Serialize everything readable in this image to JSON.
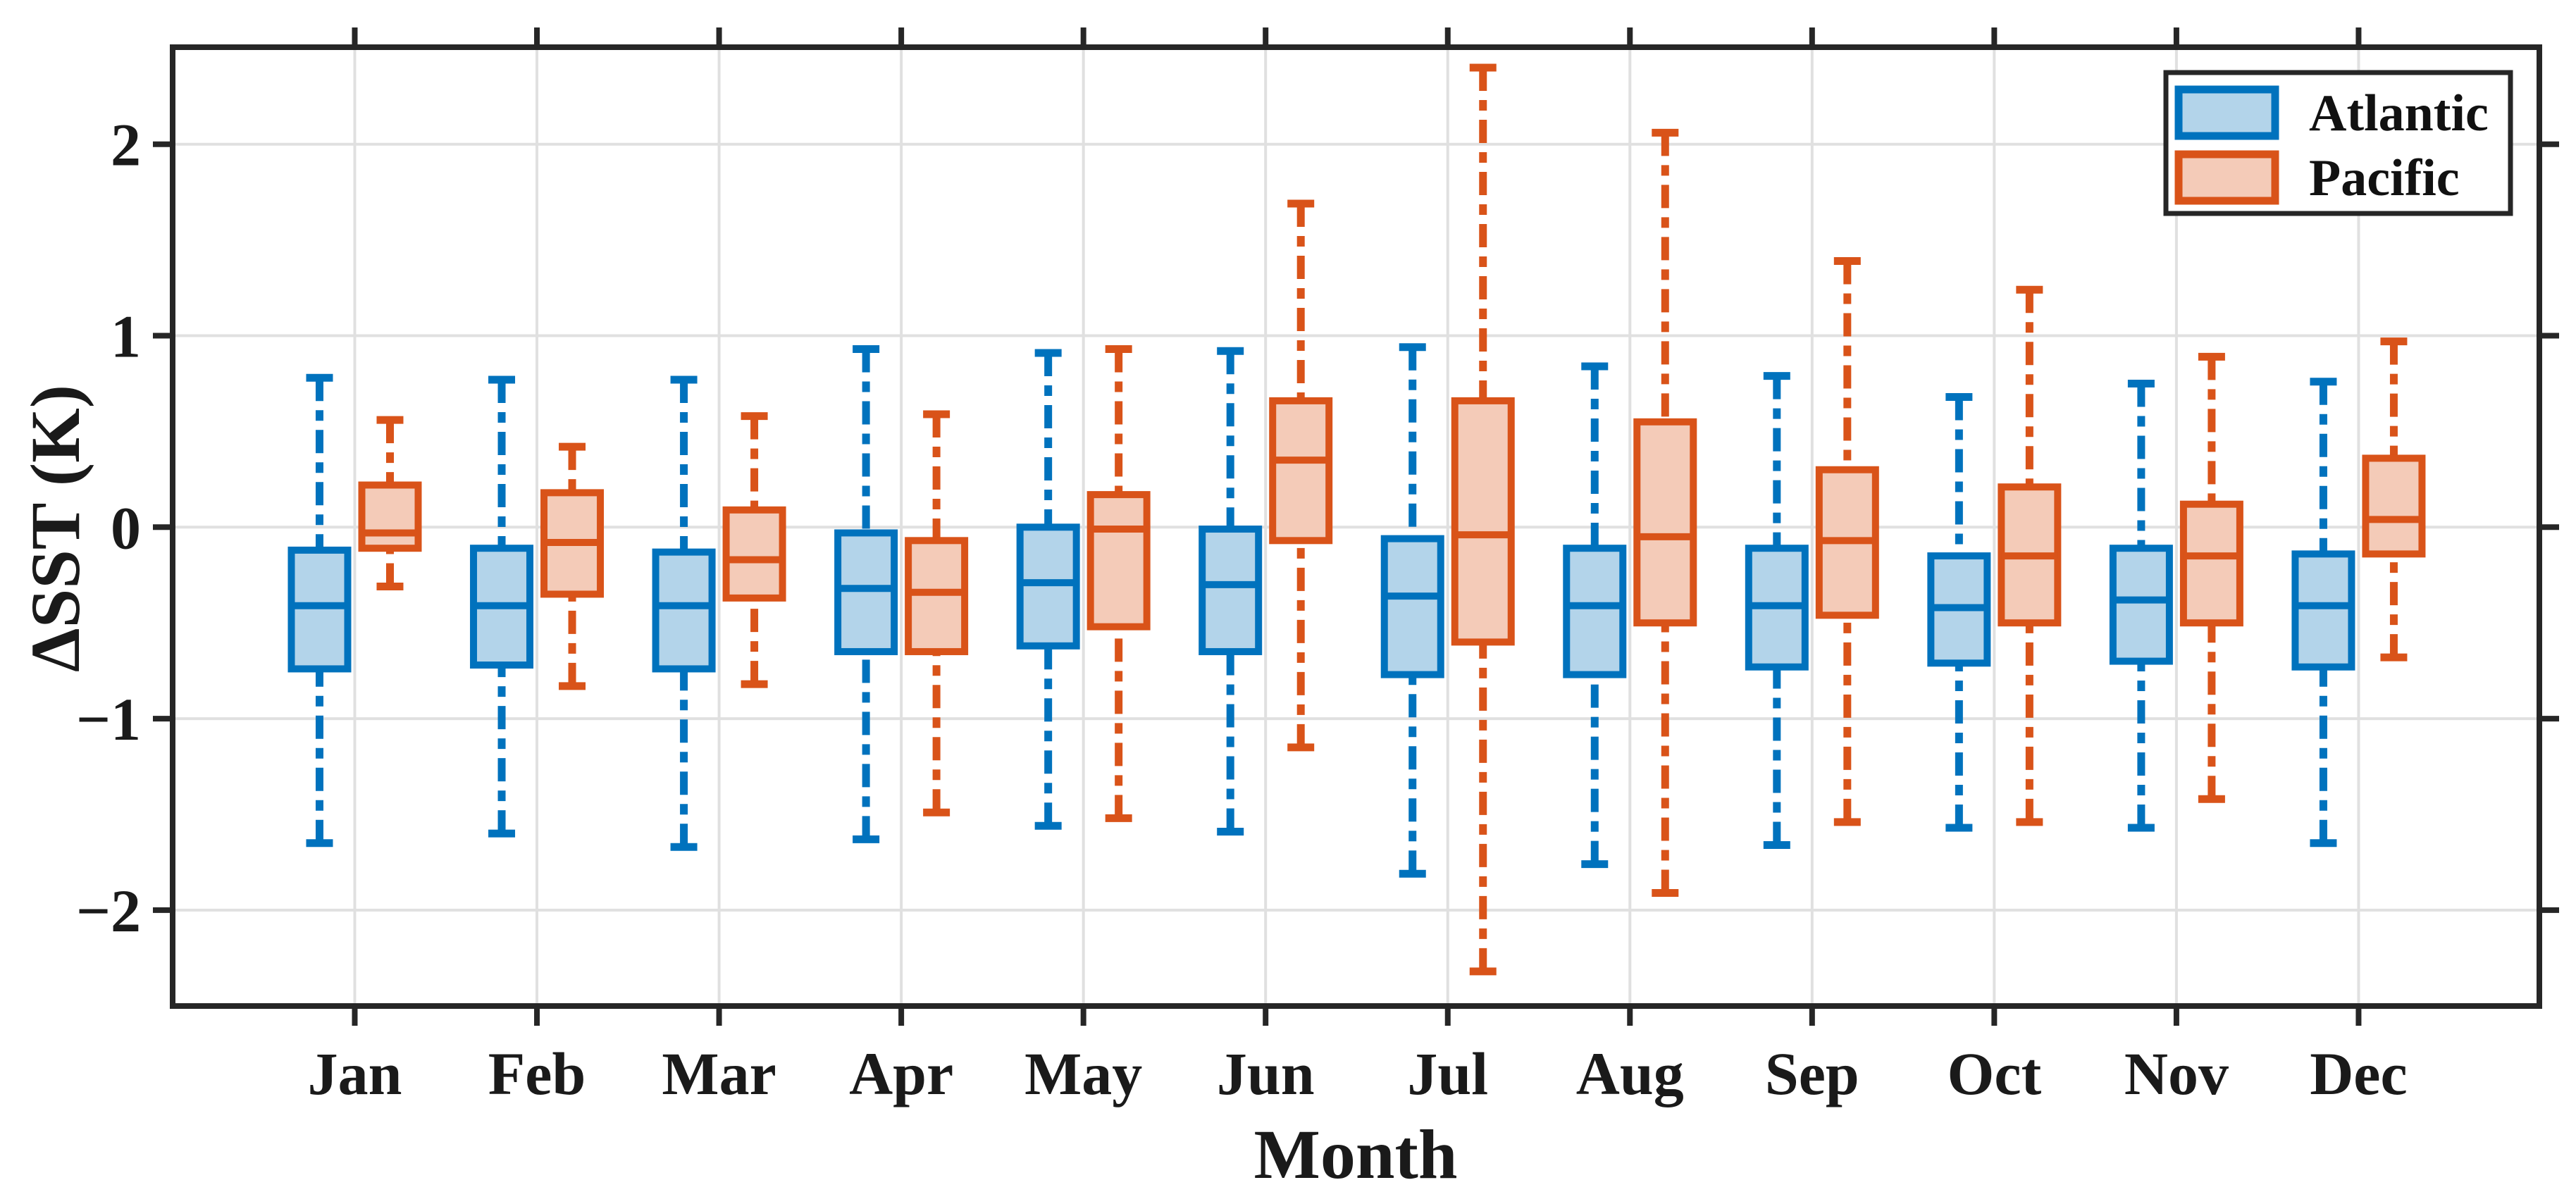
{
  "chart_data": {
    "type": "boxplot",
    "title": "",
    "xlabel": "Month",
    "ylabel": "ΔSST (K)",
    "categories": [
      "Jan",
      "Feb",
      "Mar",
      "Apr",
      "May",
      "Jun",
      "Jul",
      "Aug",
      "Sep",
      "Oct",
      "Nov",
      "Dec"
    ],
    "y_axis": {
      "tick_values": [
        2,
        1,
        0,
        -1,
        -2
      ],
      "tick_labels": [
        "2",
        "1",
        "0",
        "−1",
        "−2"
      ],
      "ylim": [
        -2.5,
        2.5
      ]
    },
    "grid": true,
    "legend": {
      "position": "top-right",
      "items": [
        "Atlantic",
        "Pacific"
      ]
    },
    "series": [
      {
        "name": "Atlantic",
        "line_color": "#0072BD",
        "fill_color": "#B3D4EA",
        "boxes": [
          {
            "whisker_low": -1.65,
            "q1": -0.74,
            "median": -0.41,
            "q3": -0.12,
            "whisker_high": 0.78
          },
          {
            "whisker_low": -1.6,
            "q1": -0.72,
            "median": -0.41,
            "q3": -0.11,
            "whisker_high": 0.77
          },
          {
            "whisker_low": -1.67,
            "q1": -0.74,
            "median": -0.41,
            "q3": -0.13,
            "whisker_high": 0.77
          },
          {
            "whisker_low": -1.63,
            "q1": -0.65,
            "median": -0.32,
            "q3": -0.03,
            "whisker_high": 0.93
          },
          {
            "whisker_low": -1.56,
            "q1": -0.62,
            "median": -0.29,
            "q3": 0.0,
            "whisker_high": 0.91
          },
          {
            "whisker_low": -1.59,
            "q1": -0.65,
            "median": -0.3,
            "q3": -0.01,
            "whisker_high": 0.92
          },
          {
            "whisker_low": -1.81,
            "q1": -0.77,
            "median": -0.36,
            "q3": -0.06,
            "whisker_high": 0.94
          },
          {
            "whisker_low": -1.76,
            "q1": -0.77,
            "median": -0.41,
            "q3": -0.11,
            "whisker_high": 0.84
          },
          {
            "whisker_low": -1.66,
            "q1": -0.73,
            "median": -0.41,
            "q3": -0.11,
            "whisker_high": 0.79
          },
          {
            "whisker_low": -1.57,
            "q1": -0.71,
            "median": -0.42,
            "q3": -0.15,
            "whisker_high": 0.68
          },
          {
            "whisker_low": -1.57,
            "q1": -0.7,
            "median": -0.38,
            "q3": -0.11,
            "whisker_high": 0.75
          },
          {
            "whisker_low": -1.65,
            "q1": -0.73,
            "median": -0.41,
            "q3": -0.14,
            "whisker_high": 0.76
          }
        ]
      },
      {
        "name": "Pacific",
        "line_color": "#D95319",
        "fill_color": "#F4CBB8",
        "boxes": [
          {
            "whisker_low": -0.31,
            "q1": -0.11,
            "median": -0.03,
            "q3": 0.22,
            "whisker_high": 0.56
          },
          {
            "whisker_low": -0.83,
            "q1": -0.35,
            "median": -0.08,
            "q3": 0.18,
            "whisker_high": 0.42
          },
          {
            "whisker_low": -0.82,
            "q1": -0.37,
            "median": -0.17,
            "q3": 0.09,
            "whisker_high": 0.58
          },
          {
            "whisker_low": -1.49,
            "q1": -0.65,
            "median": -0.34,
            "q3": -0.07,
            "whisker_high": 0.59
          },
          {
            "whisker_low": -1.52,
            "q1": -0.52,
            "median": -0.01,
            "q3": 0.17,
            "whisker_high": 0.93
          },
          {
            "whisker_low": -1.15,
            "q1": -0.07,
            "median": 0.35,
            "q3": 0.66,
            "whisker_high": 1.69
          },
          {
            "whisker_low": -2.32,
            "q1": -0.6,
            "median": -0.04,
            "q3": 0.66,
            "whisker_high": 2.4
          },
          {
            "whisker_low": -1.91,
            "q1": -0.5,
            "median": -0.05,
            "q3": 0.55,
            "whisker_high": 2.06
          },
          {
            "whisker_low": -1.54,
            "q1": -0.46,
            "median": -0.07,
            "q3": 0.3,
            "whisker_high": 1.39
          },
          {
            "whisker_low": -1.54,
            "q1": -0.5,
            "median": -0.15,
            "q3": 0.21,
            "whisker_high": 1.24
          },
          {
            "whisker_low": -1.42,
            "q1": -0.5,
            "median": -0.15,
            "q3": 0.12,
            "whisker_high": 0.89
          },
          {
            "whisker_low": -0.68,
            "q1": -0.14,
            "median": 0.04,
            "q3": 0.36,
            "whisker_high": 0.97
          }
        ]
      }
    ]
  },
  "styles": {
    "axis_color": "#262626",
    "grid_color": "#E0E0E0",
    "text_color": "#1a1a1a",
    "background": "#FFFFFF"
  }
}
